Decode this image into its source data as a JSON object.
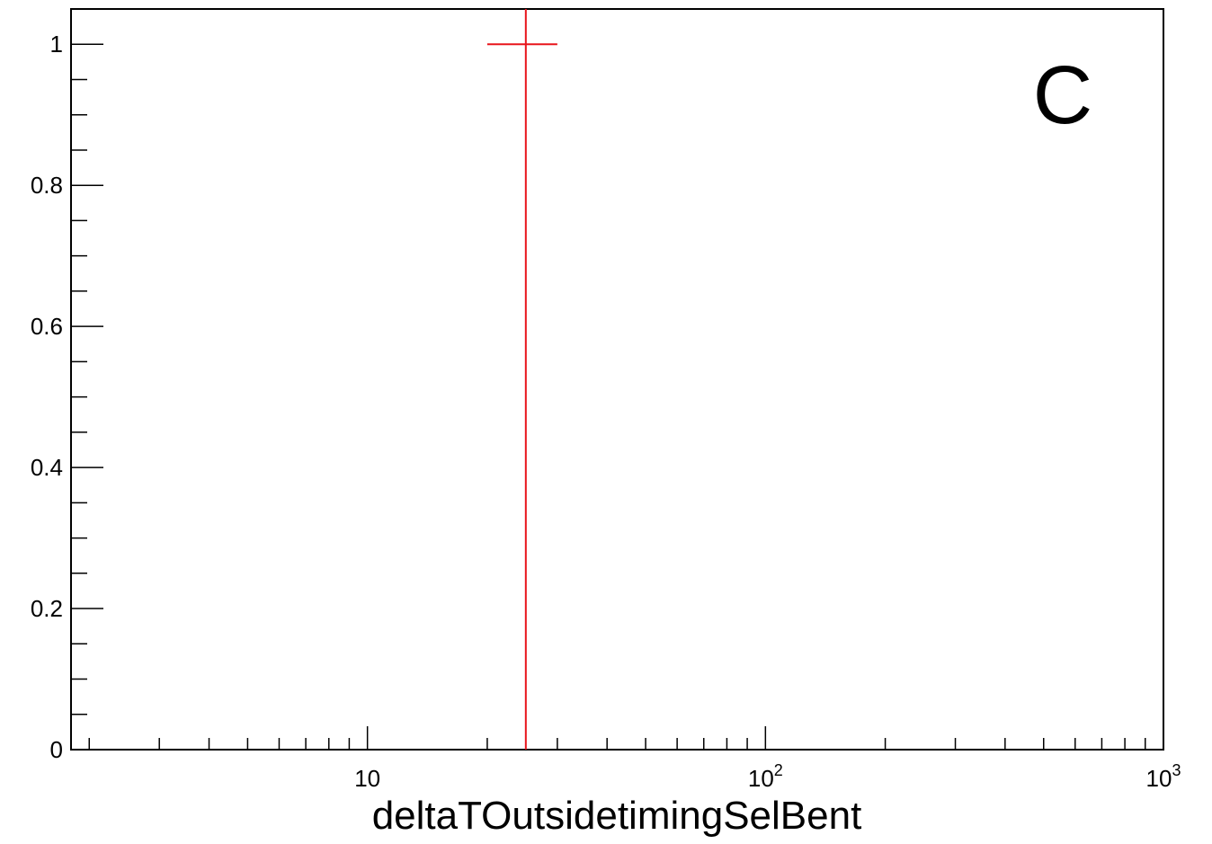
{
  "chart_data": {
    "type": "scatter",
    "title": "",
    "xlabel": "deltaTOutsidetimingSelBent",
    "ylabel": "",
    "x_scale": "log",
    "xlim": [
      1.8,
      1000
    ],
    "ylim": [
      0,
      1.05
    ],
    "x_ticks": [
      {
        "value": 10,
        "base": "10",
        "exp": ""
      },
      {
        "value": 100,
        "base": "10",
        "exp": "2"
      },
      {
        "value": 1000,
        "base": "10",
        "exp": "3"
      }
    ],
    "y_ticks": [
      {
        "value": 0,
        "label": "0"
      },
      {
        "value": 0.2,
        "label": "0.2"
      },
      {
        "value": 0.4,
        "label": "0.4"
      },
      {
        "value": 0.6,
        "label": "0.6"
      },
      {
        "value": 0.8,
        "label": "0.8"
      },
      {
        "value": 1,
        "label": "1"
      }
    ],
    "annotation": "C",
    "series": [
      {
        "color": "#e8151c",
        "points": [
          {
            "x": 25,
            "y": 1,
            "x_low": 20,
            "x_high": 30,
            "y_low": 0,
            "y_high": 1.05
          }
        ]
      }
    ],
    "grid": false,
    "legend": "none"
  }
}
